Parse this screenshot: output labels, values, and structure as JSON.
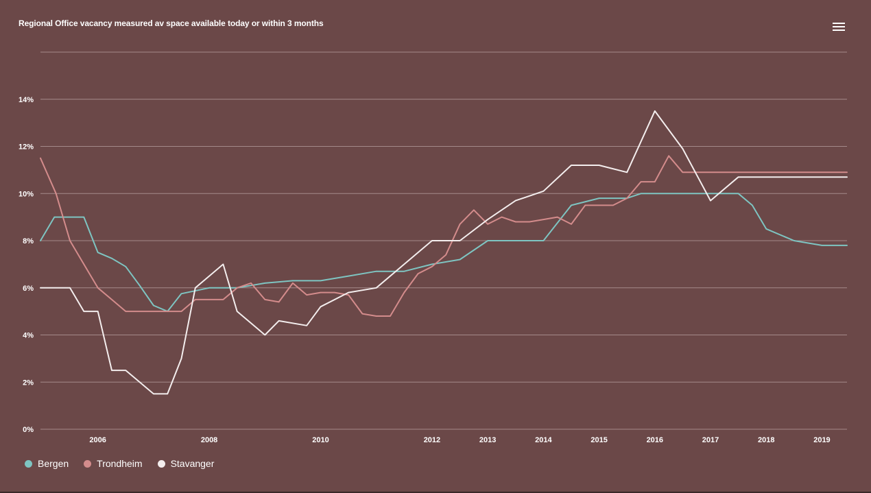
{
  "title": "Regional Office vacancy measured av space available today or within 3 months",
  "menu": {
    "icon": "hamburger-menu-icon"
  },
  "colors": {
    "background": "#6b4848",
    "grid": "#a58a8a",
    "Bergen": "#7ec5c2",
    "Trondheim": "#d48c8c",
    "Stavanger": "#f4eeee"
  },
  "chart_data": {
    "type": "line",
    "title": "Regional Office vacancy measured av space available today or within 3 months",
    "xlabel": "",
    "ylabel": "",
    "ylim": [
      0,
      16
    ],
    "xlim": [
      2004.97,
      2019.45
    ],
    "yticks": [
      0,
      2,
      4,
      6,
      8,
      10,
      12,
      14
    ],
    "ytick_labels": [
      "0%",
      "2%",
      "4%",
      "6%",
      "8%",
      "10%",
      "12%",
      "14%"
    ],
    "xticks": [
      2006,
      2008,
      2010,
      2012,
      2013,
      2014,
      2015,
      2016,
      2017,
      2018,
      2019
    ],
    "xtick_labels": [
      "2006",
      "2008",
      "2010",
      "2012",
      "2013",
      "2014",
      "2015",
      "2016",
      "2017",
      "2018",
      "2019"
    ],
    "legend_position": "bottom-left",
    "grid": true,
    "series": [
      {
        "name": "Bergen",
        "x": [
          2004.97,
          2005.22,
          2005.75,
          2006.0,
          2006.25,
          2006.5,
          2006.75,
          2007.0,
          2007.25,
          2007.5,
          2008.0,
          2008.5,
          2009.0,
          2009.5,
          2010.0,
          2010.5,
          2011.0,
          2011.5,
          2012.0,
          2012.5,
          2013.0,
          2013.5,
          2014.0,
          2014.5,
          2015.0,
          2015.25,
          2015.5,
          2015.75,
          2016.0,
          2016.5,
          2017.0,
          2017.25,
          2017.5,
          2017.75,
          2018.0,
          2018.5,
          2019.0,
          2019.45
        ],
        "values": [
          8.0,
          9.0,
          9.0,
          7.5,
          7.25,
          6.9,
          6.1,
          5.25,
          5.0,
          5.75,
          6.0,
          6.0,
          6.2,
          6.3,
          6.3,
          6.5,
          6.7,
          6.7,
          7.0,
          7.2,
          8.0,
          8.0,
          8.0,
          9.5,
          9.8,
          9.8,
          9.8,
          10.0,
          10.0,
          10.0,
          10.0,
          10.0,
          10.0,
          9.5,
          8.5,
          8.0,
          7.8,
          7.8
        ]
      },
      {
        "name": "Trondheim",
        "x": [
          2004.97,
          2005.25,
          2005.5,
          2005.75,
          2006.0,
          2006.25,
          2006.5,
          2006.75,
          2007.0,
          2007.25,
          2007.5,
          2007.75,
          2008.0,
          2008.25,
          2008.5,
          2008.75,
          2009.0,
          2009.25,
          2009.5,
          2009.75,
          2010.0,
          2010.25,
          2010.5,
          2010.75,
          2011.0,
          2011.25,
          2011.5,
          2011.75,
          2012.0,
          2012.25,
          2012.5,
          2012.75,
          2013.0,
          2013.25,
          2013.5,
          2013.75,
          2014.0,
          2014.25,
          2014.5,
          2014.75,
          2015.0,
          2015.25,
          2015.5,
          2015.75,
          2016.0,
          2016.25,
          2016.5,
          2016.75,
          2017.0,
          2017.25,
          2017.5,
          2017.75,
          2018.0,
          2018.25,
          2018.5,
          2018.75,
          2019.0,
          2019.25,
          2019.45
        ],
        "values": [
          11.5,
          10.0,
          8.0,
          7.0,
          6.0,
          5.5,
          5.0,
          5.0,
          5.0,
          5.0,
          5.0,
          5.5,
          5.5,
          5.5,
          6.0,
          6.2,
          5.5,
          5.4,
          6.2,
          5.7,
          5.8,
          5.8,
          5.7,
          4.9,
          4.8,
          4.8,
          5.8,
          6.6,
          6.9,
          7.4,
          8.7,
          9.3,
          8.7,
          9.0,
          8.8,
          8.8,
          8.9,
          9.0,
          8.7,
          9.5,
          9.5,
          9.5,
          9.8,
          10.5,
          10.5,
          11.6,
          10.9,
          10.9,
          10.9,
          10.9,
          10.9,
          10.9,
          10.9,
          10.9,
          10.9,
          10.9,
          10.9,
          10.9,
          10.9
        ]
      },
      {
        "name": "Stavanger",
        "x": [
          2004.97,
          2005.5,
          2005.75,
          2006.0,
          2006.25,
          2006.5,
          2007.0,
          2007.25,
          2007.5,
          2007.75,
          2008.0,
          2008.25,
          2008.5,
          2009.0,
          2009.25,
          2009.75,
          2010.0,
          2010.5,
          2011.0,
          2011.5,
          2012.0,
          2012.5,
          2013.0,
          2013.5,
          2014.0,
          2014.5,
          2015.0,
          2015.5,
          2016.0,
          2016.5,
          2017.0,
          2017.5,
          2018.0,
          2018.5,
          2019.0,
          2019.45
        ],
        "values": [
          6.0,
          6.0,
          5.0,
          5.0,
          2.5,
          2.5,
          1.5,
          1.5,
          3.0,
          6.0,
          6.5,
          7.0,
          5.0,
          4.0,
          4.6,
          4.4,
          5.2,
          5.8,
          6.0,
          7.0,
          8.0,
          8.0,
          8.9,
          9.7,
          10.1,
          11.2,
          11.2,
          10.9,
          13.5,
          11.9,
          9.7,
          10.7,
          10.7,
          10.7,
          10.7,
          10.7
        ]
      }
    ]
  },
  "legend": [
    {
      "label": "Bergen"
    },
    {
      "label": "Trondheim"
    },
    {
      "label": "Stavanger"
    }
  ]
}
